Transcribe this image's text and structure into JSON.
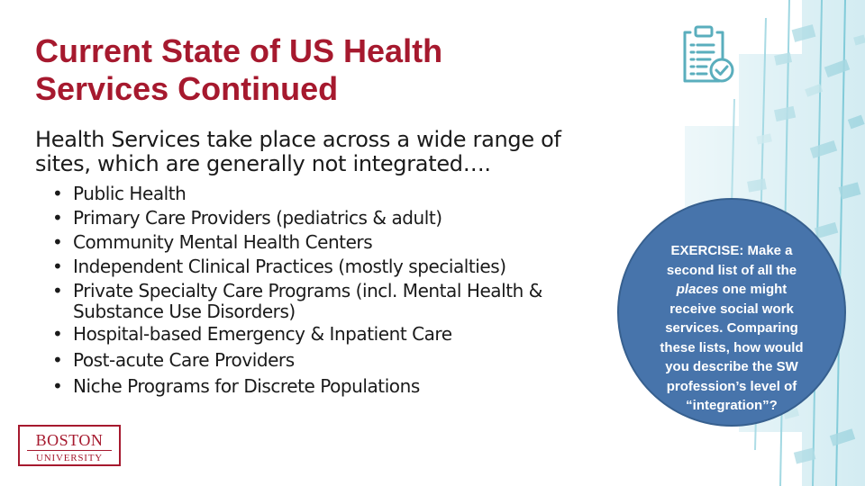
{
  "slide": {
    "title_lines": [
      "Current State of US Health",
      "Services Continued"
    ],
    "intro_lines": [
      "Health Services take place across a wide range of",
      "sites, which are generally not integrated…."
    ],
    "bullet_char": "•",
    "bullets": [
      {
        "lines": [
          "Public Health"
        ]
      },
      {
        "lines": [
          "Primary Care Providers (pediatrics & adult)"
        ]
      },
      {
        "lines": [
          "Community Mental Health Centers"
        ]
      },
      {
        "lines": [
          "Independent Clinical Practices (mostly specialties)"
        ]
      },
      {
        "lines": [
          "Private Specialty Care Programs (incl. Mental Health &",
          "Substance Use Disorders)"
        ]
      },
      {
        "lines": [
          "Hospital-based Emergency & Inpatient Care"
        ]
      },
      {
        "lines": [
          "Post-acute Care Providers"
        ]
      },
      {
        "lines": [
          "Niche Programs for Discrete Populations"
        ]
      }
    ],
    "exercise": {
      "label": "EXERCISE:",
      "line1_rest": " Make a",
      "line2": "second list of all the",
      "line3_em": "places",
      "line3_rest": " one might",
      "line4": "receive social work",
      "line5": "services. Comparing",
      "line6": "these lists, how would",
      "line7": "you describe the SW",
      "line8": "profession’s level of",
      "line9": "“integration”?"
    },
    "logo": {
      "line1": "BOSTON",
      "line2": "UNIVERSITY"
    },
    "icons": {
      "clipboard": "clipboard-check-icon"
    },
    "colors": {
      "title": "#a6192e",
      "accent_teal": "#5aaebd",
      "circle_fill": "#4774ab",
      "text": "#1a1a1a"
    }
  }
}
